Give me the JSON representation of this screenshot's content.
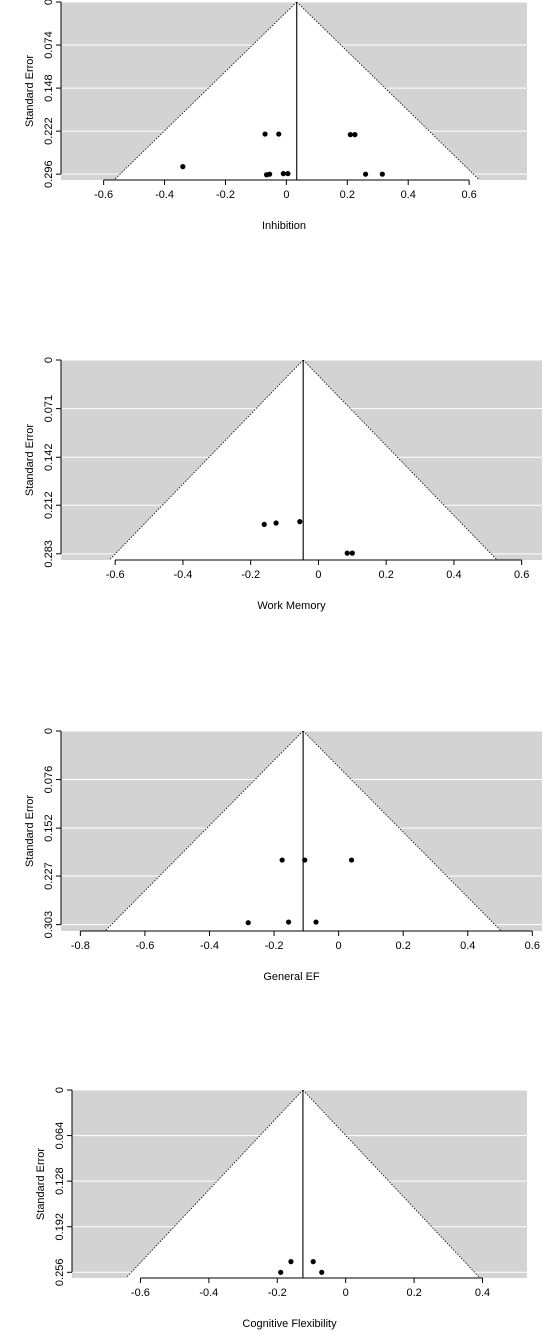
{
  "chart_data": [
    {
      "type": "scatter",
      "subtype": "funnel",
      "title": "",
      "xlabel": "Inhibition",
      "ylabel": "Standard Error",
      "xlim": [
        -0.74,
        0.79
      ],
      "ylim": [
        0.306,
        0
      ],
      "y_inverted": true,
      "x_ticks": [
        "-0.6",
        "-0.4",
        "-0.2",
        "0",
        "0.2",
        "0.4",
        "0.6"
      ],
      "x_tick_values": [
        -0.6,
        -0.4,
        -0.2,
        0,
        0.2,
        0.4,
        0.6
      ],
      "y_ticks": [
        "0",
        "0.074",
        "0.148",
        "0.222",
        "0.296"
      ],
      "y_tick_values": [
        0,
        0.074,
        0.148,
        0.222,
        0.296
      ],
      "estimate": 0.034,
      "funnel_max_se": 0.296,
      "grid": true,
      "points": [
        {
          "x": -0.34,
          "y": 0.283
        },
        {
          "x": -0.07,
          "y": 0.227
        },
        {
          "x": -0.065,
          "y": 0.297
        },
        {
          "x": -0.055,
          "y": 0.296
        },
        {
          "x": -0.025,
          "y": 0.227
        },
        {
          "x": -0.01,
          "y": 0.295
        },
        {
          "x": 0.005,
          "y": 0.295
        },
        {
          "x": 0.21,
          "y": 0.228
        },
        {
          "x": 0.225,
          "y": 0.228
        },
        {
          "x": 0.26,
          "y": 0.296
        },
        {
          "x": 0.315,
          "y": 0.296
        }
      ]
    },
    {
      "type": "scatter",
      "subtype": "funnel",
      "title": "",
      "xlabel": "Work Memory",
      "ylabel": "Standard Error",
      "xlim": [
        -0.76,
        0.66
      ],
      "ylim": [
        0.292,
        0
      ],
      "y_inverted": true,
      "x_ticks": [
        "-0.6",
        "-0.4",
        "-0.2",
        "0",
        "0.2",
        "0.4",
        "0.6"
      ],
      "x_tick_values": [
        -0.6,
        -0.4,
        -0.2,
        0,
        0.2,
        0.4,
        0.6
      ],
      "y_ticks": [
        "0",
        "0.071",
        "0.142",
        "0.212",
        "0.283"
      ],
      "y_tick_values": [
        0,
        0.071,
        0.142,
        0.212,
        0.283
      ],
      "estimate": -0.045,
      "funnel_max_se": 0.283,
      "grid": true,
      "points": [
        {
          "x": -0.16,
          "y": 0.24
        },
        {
          "x": -0.125,
          "y": 0.238
        },
        {
          "x": -0.055,
          "y": 0.236
        },
        {
          "x": 0.085,
          "y": 0.282
        },
        {
          "x": 0.1,
          "y": 0.282
        }
      ]
    },
    {
      "type": "scatter",
      "subtype": "funnel",
      "title": "",
      "xlabel": "General EF",
      "ylabel": "Standard Error",
      "xlim": [
        -0.86,
        0.63
      ],
      "ylim": [
        0.313,
        0
      ],
      "y_inverted": true,
      "x_ticks": [
        "-0.8",
        "-0.6",
        "-0.4",
        "-0.2",
        "0",
        "0.2",
        "0.4",
        "0.6"
      ],
      "x_tick_values": [
        -0.8,
        -0.6,
        -0.4,
        -0.2,
        0,
        0.2,
        0.4,
        0.6
      ],
      "y_ticks": [
        "0",
        "0.076",
        "0.152",
        "0.227",
        "0.303"
      ],
      "y_tick_values": [
        0,
        0.076,
        0.152,
        0.227,
        0.303
      ],
      "estimate": -0.11,
      "funnel_max_se": 0.303,
      "grid": true,
      "points": [
        {
          "x": -0.28,
          "y": 0.3
        },
        {
          "x": -0.175,
          "y": 0.202
        },
        {
          "x": -0.155,
          "y": 0.299
        },
        {
          "x": -0.105,
          "y": 0.202
        },
        {
          "x": -0.07,
          "y": 0.299
        },
        {
          "x": 0.04,
          "y": 0.202
        }
      ]
    },
    {
      "type": "scatter",
      "subtype": "funnel",
      "title": "",
      "xlabel": "Cognitive Flexibility",
      "ylabel": "Standard Error",
      "xlim": [
        -0.8,
        0.53
      ],
      "ylim": [
        0.264,
        0
      ],
      "y_inverted": true,
      "x_ticks": [
        "-0.6",
        "-0.4",
        "-0.2",
        "0",
        "0.2",
        "0.4"
      ],
      "x_tick_values": [
        -0.6,
        -0.4,
        -0.2,
        0,
        0.2,
        0.4
      ],
      "y_ticks": [
        "0",
        "0.064",
        "0.128",
        "0.192",
        "0.256"
      ],
      "y_tick_values": [
        0,
        0.064,
        0.128,
        0.192,
        0.256
      ],
      "estimate": -0.125,
      "funnel_max_se": 0.256,
      "grid": true,
      "points": [
        {
          "x": -0.19,
          "y": 0.256
        },
        {
          "x": -0.16,
          "y": 0.241
        },
        {
          "x": -0.095,
          "y": 0.241
        },
        {
          "x": -0.07,
          "y": 0.256
        }
      ]
    }
  ],
  "colors": {
    "panel_background": "#d3d3d3",
    "funnel_fill": "#ffffff",
    "gridline": "#ffffff",
    "points": "#000000",
    "axis": "#000000"
  }
}
